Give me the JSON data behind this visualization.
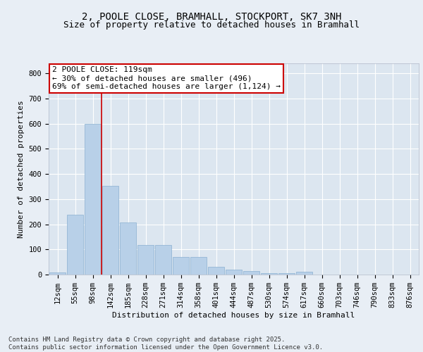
{
  "title_line1": "2, POOLE CLOSE, BRAMHALL, STOCKPORT, SK7 3NH",
  "title_line2": "Size of property relative to detached houses in Bramhall",
  "xlabel": "Distribution of detached houses by size in Bramhall",
  "ylabel": "Number of detached properties",
  "categories": [
    "12sqm",
    "55sqm",
    "98sqm",
    "142sqm",
    "185sqm",
    "228sqm",
    "271sqm",
    "314sqm",
    "358sqm",
    "401sqm",
    "444sqm",
    "487sqm",
    "530sqm",
    "574sqm",
    "617sqm",
    "660sqm",
    "703sqm",
    "746sqm",
    "790sqm",
    "833sqm",
    "876sqm"
  ],
  "values": [
    8,
    238,
    598,
    352,
    207,
    118,
    118,
    70,
    70,
    30,
    20,
    15,
    5,
    5,
    10,
    0,
    0,
    0,
    0,
    0,
    0
  ],
  "bar_color": "#b8d0e8",
  "bar_edge_color": "#8ab0d0",
  "vline_x": 2.5,
  "vline_color": "#cc0000",
  "annotation_text": "2 POOLE CLOSE: 119sqm\n← 30% of detached houses are smaller (496)\n69% of semi-detached houses are larger (1,124) →",
  "annotation_box_facecolor": "#ffffff",
  "annotation_box_edgecolor": "#cc0000",
  "ylim": [
    0,
    840
  ],
  "yticks": [
    0,
    100,
    200,
    300,
    400,
    500,
    600,
    700,
    800
  ],
  "background_color": "#e8eef5",
  "plot_bg_color": "#dce6f0",
  "grid_color": "#ffffff",
  "footer_text": "Contains HM Land Registry data © Crown copyright and database right 2025.\nContains public sector information licensed under the Open Government Licence v3.0.",
  "title_fontsize": 10,
  "subtitle_fontsize": 9,
  "axis_label_fontsize": 8,
  "tick_fontsize": 7.5,
  "annotation_fontsize": 8,
  "footer_fontsize": 6.5
}
